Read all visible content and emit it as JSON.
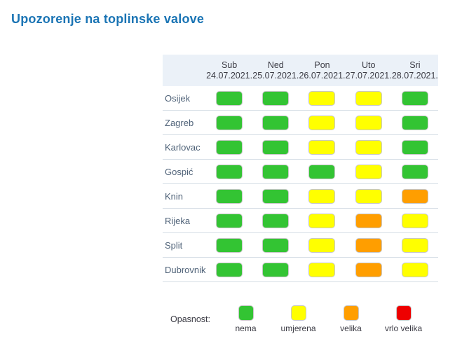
{
  "page": {
    "title": "Upozorenje na toplinske valove"
  },
  "colors": {
    "nema": "#33c433",
    "umjerena": "#ffff00",
    "velika": "#ff9e00",
    "vrlo velika": "#ee0000",
    "header_bg": "#ebf1f8",
    "title_text": "#1a74b4",
    "city_text": "#506379",
    "separator": "#d5dde5"
  },
  "table": {
    "days": [
      {
        "day": "Sub",
        "date": "24.07.2021."
      },
      {
        "day": "Ned",
        "date": "25.07.2021."
      },
      {
        "day": "Pon",
        "date": "26.07.2021."
      },
      {
        "day": "Uto",
        "date": "27.07.2021."
      },
      {
        "day": "Sri",
        "date": "28.07.2021."
      }
    ],
    "rows": [
      {
        "city": "Osijek",
        "levels": [
          "nema",
          "nema",
          "umjerena",
          "umjerena",
          "nema"
        ]
      },
      {
        "city": "Zagreb",
        "levels": [
          "nema",
          "nema",
          "umjerena",
          "umjerena",
          "nema"
        ]
      },
      {
        "city": "Karlovac",
        "levels": [
          "nema",
          "nema",
          "umjerena",
          "umjerena",
          "nema"
        ]
      },
      {
        "city": "Gospić",
        "levels": [
          "nema",
          "nema",
          "nema",
          "umjerena",
          "nema"
        ]
      },
      {
        "city": "Knin",
        "levels": [
          "nema",
          "nema",
          "umjerena",
          "umjerena",
          "velika"
        ]
      },
      {
        "city": "Rijeka",
        "levels": [
          "nema",
          "nema",
          "umjerena",
          "velika",
          "umjerena"
        ]
      },
      {
        "city": "Split",
        "levels": [
          "nema",
          "nema",
          "umjerena",
          "velika",
          "umjerena"
        ]
      },
      {
        "city": "Dubrovnik",
        "levels": [
          "nema",
          "nema",
          "umjerena",
          "velika",
          "umjerena"
        ]
      }
    ]
  },
  "legend": {
    "label": "Opasnost:",
    "items": [
      {
        "label": "nema",
        "color": "#33c433"
      },
      {
        "label": "umjerena",
        "color": "#ffff00"
      },
      {
        "label": "velika",
        "color": "#ff9e00"
      },
      {
        "label": "vrlo velika",
        "color": "#ee0000"
      }
    ]
  },
  "chart_data": {
    "type": "heatmap",
    "title": "Upozorenje na toplinske valove",
    "columns": [
      "Sub 24.07.2021.",
      "Ned 25.07.2021.",
      "Pon 26.07.2021.",
      "Uto 27.07.2021.",
      "Sri 28.07.2021."
    ],
    "rows": [
      "Osijek",
      "Zagreb",
      "Karlovac",
      "Gospić",
      "Knin",
      "Rijeka",
      "Split",
      "Dubrovnik"
    ],
    "values": [
      [
        "nema",
        "nema",
        "umjerena",
        "umjerena",
        "nema"
      ],
      [
        "nema",
        "nema",
        "umjerena",
        "umjerena",
        "nema"
      ],
      [
        "nema",
        "nema",
        "umjerena",
        "umjerena",
        "nema"
      ],
      [
        "nema",
        "nema",
        "nema",
        "umjerena",
        "nema"
      ],
      [
        "nema",
        "nema",
        "umjerena",
        "umjerena",
        "velika"
      ],
      [
        "nema",
        "nema",
        "umjerena",
        "velika",
        "umjerena"
      ],
      [
        "nema",
        "nema",
        "umjerena",
        "velika",
        "umjerena"
      ],
      [
        "nema",
        "nema",
        "umjerena",
        "velika",
        "umjerena"
      ]
    ],
    "legend_title": "Opasnost:",
    "legend": {
      "nema": "#33c433",
      "umjerena": "#ffff00",
      "velika": "#ff9e00",
      "vrlo velika": "#ee0000"
    },
    "layout": {
      "grid": "horizontal row separators only",
      "legend_position": "bottom"
    }
  }
}
